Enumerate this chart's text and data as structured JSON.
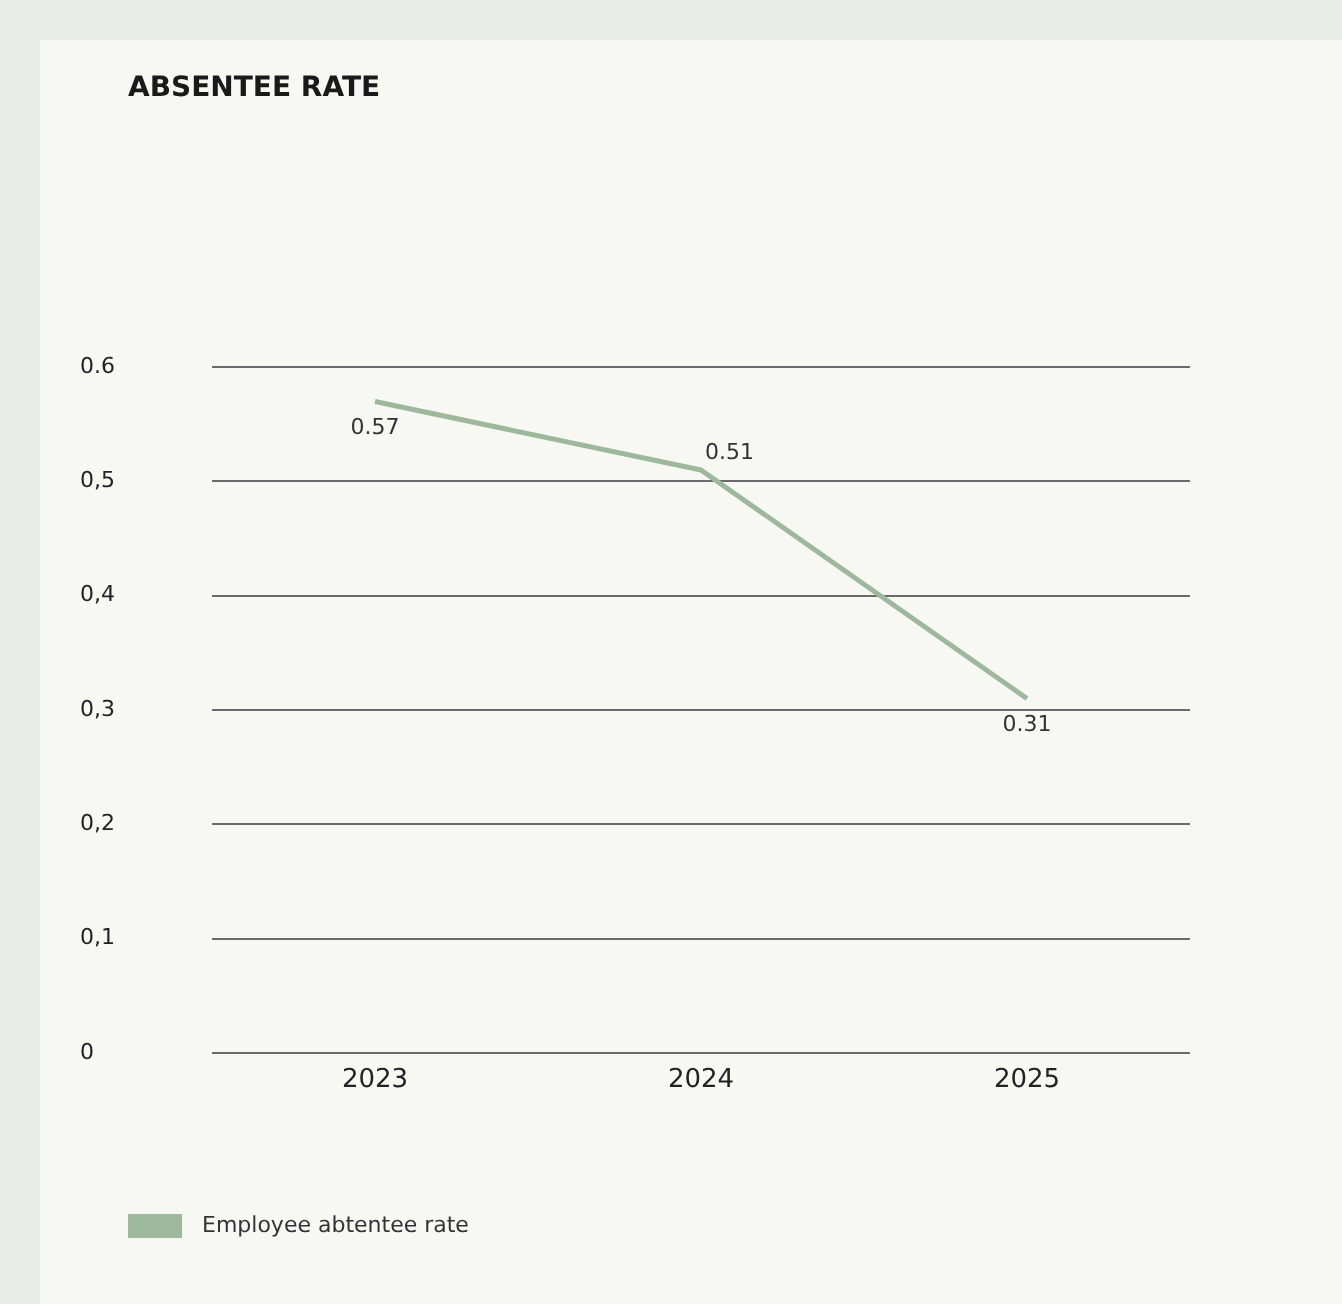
{
  "chart_data": {
    "type": "line",
    "title": "ABSENTEE RATE",
    "categories": [
      "2023",
      "2024",
      "2025"
    ],
    "series": [
      {
        "name": "Employee abtentee rate",
        "color": "#9db89a",
        "values": [
          0.57,
          0.51,
          0.31
        ]
      }
    ],
    "ylim": [
      0,
      0.6
    ],
    "yticks": [
      0,
      {
        "value": 0.1,
        "label": "0,1"
      },
      {
        "value": 0.2,
        "label": "0,2"
      },
      {
        "value": 0.3,
        "label": "0,3"
      },
      {
        "value": 0.4,
        "label": "0,4"
      },
      {
        "value": 0.5,
        "label": "0,5"
      },
      0.6
    ],
    "grid": "y",
    "legend": "bottom left",
    "marker": "none",
    "line_style": "solid",
    "data_labels": true
  }
}
